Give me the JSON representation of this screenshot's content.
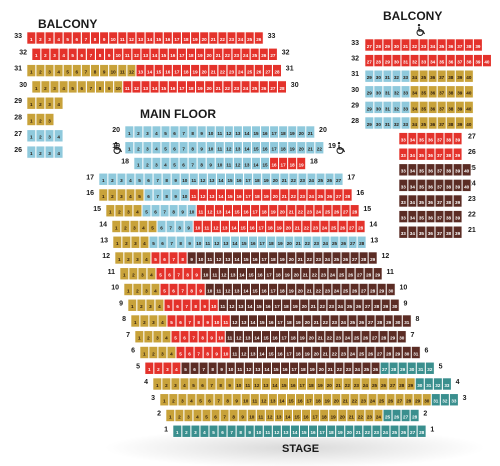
{
  "labels": {
    "balcony_left": "BALCONY",
    "balcony_right": "BALCONY",
    "main_floor": "MAIN FLOOR",
    "stage": "STAGE"
  },
  "colors": {
    "red": "#e4322b",
    "gold": "#c8a23a",
    "blue": "#8fc9dc",
    "brown": "#5b2c24",
    "teal": "#3a8f8e",
    "stage_shadow": "#e6e6e6"
  },
  "icons": {
    "accessible": "wheelchair-icon"
  },
  "sections": {
    "balcony_left": [
      {
        "row": "33",
        "segments": [
          {
            "start": 1,
            "end": 26,
            "color": "red"
          }
        ],
        "label_right": true
      },
      {
        "row": "32",
        "segments": [
          {
            "start": 1,
            "end": 27,
            "color": "red"
          }
        ],
        "label_right": true
      },
      {
        "row": "31",
        "segments": [
          {
            "start": 1,
            "end": 12,
            "color": "gold"
          },
          {
            "start": 13,
            "end": 28,
            "color": "red"
          }
        ],
        "label_right": true
      },
      {
        "row": "30",
        "segments": [
          {
            "start": 1,
            "end": 10,
            "color": "gold"
          },
          {
            "start": 11,
            "end": 28,
            "color": "red"
          }
        ],
        "label_right": true
      },
      {
        "row": "29",
        "segments": [
          {
            "start": 1,
            "end": 4,
            "color": "gold"
          }
        ],
        "label_right": false
      },
      {
        "row": "28",
        "segments": [
          {
            "start": 1,
            "end": 3,
            "color": "gold"
          }
        ],
        "label_right": false
      },
      {
        "row": "27",
        "segments": [
          {
            "start": 1,
            "end": 4,
            "color": "blue"
          }
        ],
        "label_right": false
      },
      {
        "row": "26",
        "segments": [
          {
            "start": 1,
            "end": 4,
            "color": "blue"
          }
        ],
        "label_right": false
      }
    ],
    "balcony_right": [
      {
        "row": "33",
        "segments": [
          {
            "start": 27,
            "end": 39,
            "color": "red"
          }
        ]
      },
      {
        "row": "32",
        "segments": [
          {
            "start": 27,
            "end": 40,
            "color": "red"
          }
        ]
      },
      {
        "row": "31",
        "segments": [
          {
            "start": 29,
            "end": 33,
            "color": "blue"
          },
          {
            "start": 34,
            "end": 40,
            "color": "gold"
          }
        ]
      },
      {
        "row": "30",
        "segments": [
          {
            "start": 29,
            "end": 33,
            "color": "blue"
          },
          {
            "start": 34,
            "end": 40,
            "color": "gold"
          }
        ]
      },
      {
        "row": "29",
        "segments": [
          {
            "start": 29,
            "end": 33,
            "color": "blue"
          },
          {
            "start": 34,
            "end": 40,
            "color": "gold"
          }
        ]
      },
      {
        "row": "28",
        "segments": [
          {
            "start": 29,
            "end": 33,
            "color": "blue"
          },
          {
            "start": 34,
            "end": 40,
            "color": "gold"
          }
        ]
      },
      {
        "row": "27",
        "segments": [
          {
            "start": 33,
            "end": 39,
            "color": "red"
          }
        ]
      },
      {
        "row": "26",
        "segments": [
          {
            "start": 33,
            "end": 39,
            "color": "red"
          }
        ]
      },
      {
        "row": "25",
        "segments": [
          {
            "start": 33,
            "end": 40,
            "color": "brown"
          }
        ]
      },
      {
        "row": "24",
        "segments": [
          {
            "start": 33,
            "end": 40,
            "color": "brown"
          }
        ]
      },
      {
        "row": "23",
        "segments": [
          {
            "start": 33,
            "end": 39,
            "color": "brown"
          }
        ]
      },
      {
        "row": "22",
        "segments": [
          {
            "start": 33,
            "end": 39,
            "color": "brown"
          }
        ]
      },
      {
        "row": "21",
        "segments": [
          {
            "start": 33,
            "end": 39,
            "color": "brown"
          }
        ]
      }
    ],
    "main_floor": [
      {
        "row": "20",
        "segments": [
          {
            "start": 1,
            "end": 21,
            "color": "blue"
          }
        ]
      },
      {
        "row": "19",
        "segments": [
          {
            "start": 1,
            "end": 22,
            "color": "blue"
          }
        ]
      },
      {
        "row": "18",
        "segments": [
          {
            "start": 1,
            "end": 15,
            "color": "blue"
          },
          {
            "start": 16,
            "end": 19,
            "color": "red"
          }
        ]
      },
      {
        "row": "17",
        "segments": [
          {
            "start": 1,
            "end": 27,
            "color": "blue"
          }
        ]
      },
      {
        "row": "16",
        "segments": [
          {
            "start": 1,
            "end": 5,
            "color": "gold"
          },
          {
            "start": 6,
            "end": 10,
            "color": "blue"
          },
          {
            "start": 11,
            "end": 28,
            "color": "red"
          }
        ]
      },
      {
        "row": "15",
        "segments": [
          {
            "start": 1,
            "end": 4,
            "color": "gold"
          },
          {
            "start": 5,
            "end": 10,
            "color": "blue"
          },
          {
            "start": 11,
            "end": 28,
            "color": "red"
          }
        ]
      },
      {
        "row": "14",
        "segments": [
          {
            "start": 1,
            "end": 5,
            "color": "gold"
          },
          {
            "start": 6,
            "end": 9,
            "color": "blue"
          },
          {
            "start": 10,
            "end": 28,
            "color": "red"
          }
        ]
      },
      {
        "row": "13",
        "segments": [
          {
            "start": 1,
            "end": 4,
            "color": "gold"
          },
          {
            "start": 5,
            "end": 28,
            "color": "blue"
          }
        ]
      },
      {
        "row": "12",
        "segments": [
          {
            "start": 1,
            "end": 4,
            "color": "gold"
          },
          {
            "start": 5,
            "end": 8,
            "color": "red"
          },
          {
            "start": 9,
            "end": 29,
            "color": "brown"
          }
        ]
      },
      {
        "row": "11",
        "segments": [
          {
            "start": 1,
            "end": 4,
            "color": "gold"
          },
          {
            "start": 5,
            "end": 9,
            "color": "red"
          },
          {
            "start": 10,
            "end": 29,
            "color": "brown"
          }
        ]
      },
      {
        "row": "10",
        "segments": [
          {
            "start": 1,
            "end": 4,
            "color": "gold"
          },
          {
            "start": 5,
            "end": 9,
            "color": "red"
          },
          {
            "start": 10,
            "end": 30,
            "color": "brown"
          }
        ]
      },
      {
        "row": "9",
        "segments": [
          {
            "start": 1,
            "end": 4,
            "color": "gold"
          },
          {
            "start": 5,
            "end": 10,
            "color": "red"
          },
          {
            "start": 11,
            "end": 30,
            "color": "brown"
          }
        ]
      },
      {
        "row": "8",
        "segments": [
          {
            "start": 1,
            "end": 4,
            "color": "gold"
          },
          {
            "start": 5,
            "end": 11,
            "color": "red"
          },
          {
            "start": 12,
            "end": 31,
            "color": "brown"
          }
        ]
      },
      {
        "row": "7",
        "segments": [
          {
            "start": 1,
            "end": 4,
            "color": "gold"
          },
          {
            "start": 5,
            "end": 10,
            "color": "red"
          },
          {
            "start": 11,
            "end": 30,
            "color": "brown"
          }
        ]
      },
      {
        "row": "6",
        "segments": [
          {
            "start": 1,
            "end": 4,
            "color": "gold"
          },
          {
            "start": 5,
            "end": 10,
            "color": "red"
          },
          {
            "start": 11,
            "end": 31,
            "color": "brown"
          }
        ]
      },
      {
        "row": "5",
        "segments": [
          {
            "start": 1,
            "end": 4,
            "color": "red"
          },
          {
            "start": 5,
            "end": 26,
            "color": "brown"
          },
          {
            "start": 27,
            "end": 32,
            "color": "teal"
          }
        ]
      },
      {
        "row": "4",
        "segments": [
          {
            "start": 1,
            "end": 29,
            "color": "gold"
          },
          {
            "start": 30,
            "end": 33,
            "color": "teal"
          }
        ]
      },
      {
        "row": "3",
        "segments": [
          {
            "start": 1,
            "end": 30,
            "color": "gold"
          },
          {
            "start": 31,
            "end": 33,
            "color": "teal"
          }
        ]
      },
      {
        "row": "2",
        "segments": [
          {
            "start": 1,
            "end": 24,
            "color": "gold"
          },
          {
            "start": 25,
            "end": 28,
            "color": "teal"
          }
        ]
      },
      {
        "row": "1",
        "segments": [
          {
            "start": 1,
            "end": 28,
            "color": "teal"
          }
        ]
      }
    ]
  }
}
